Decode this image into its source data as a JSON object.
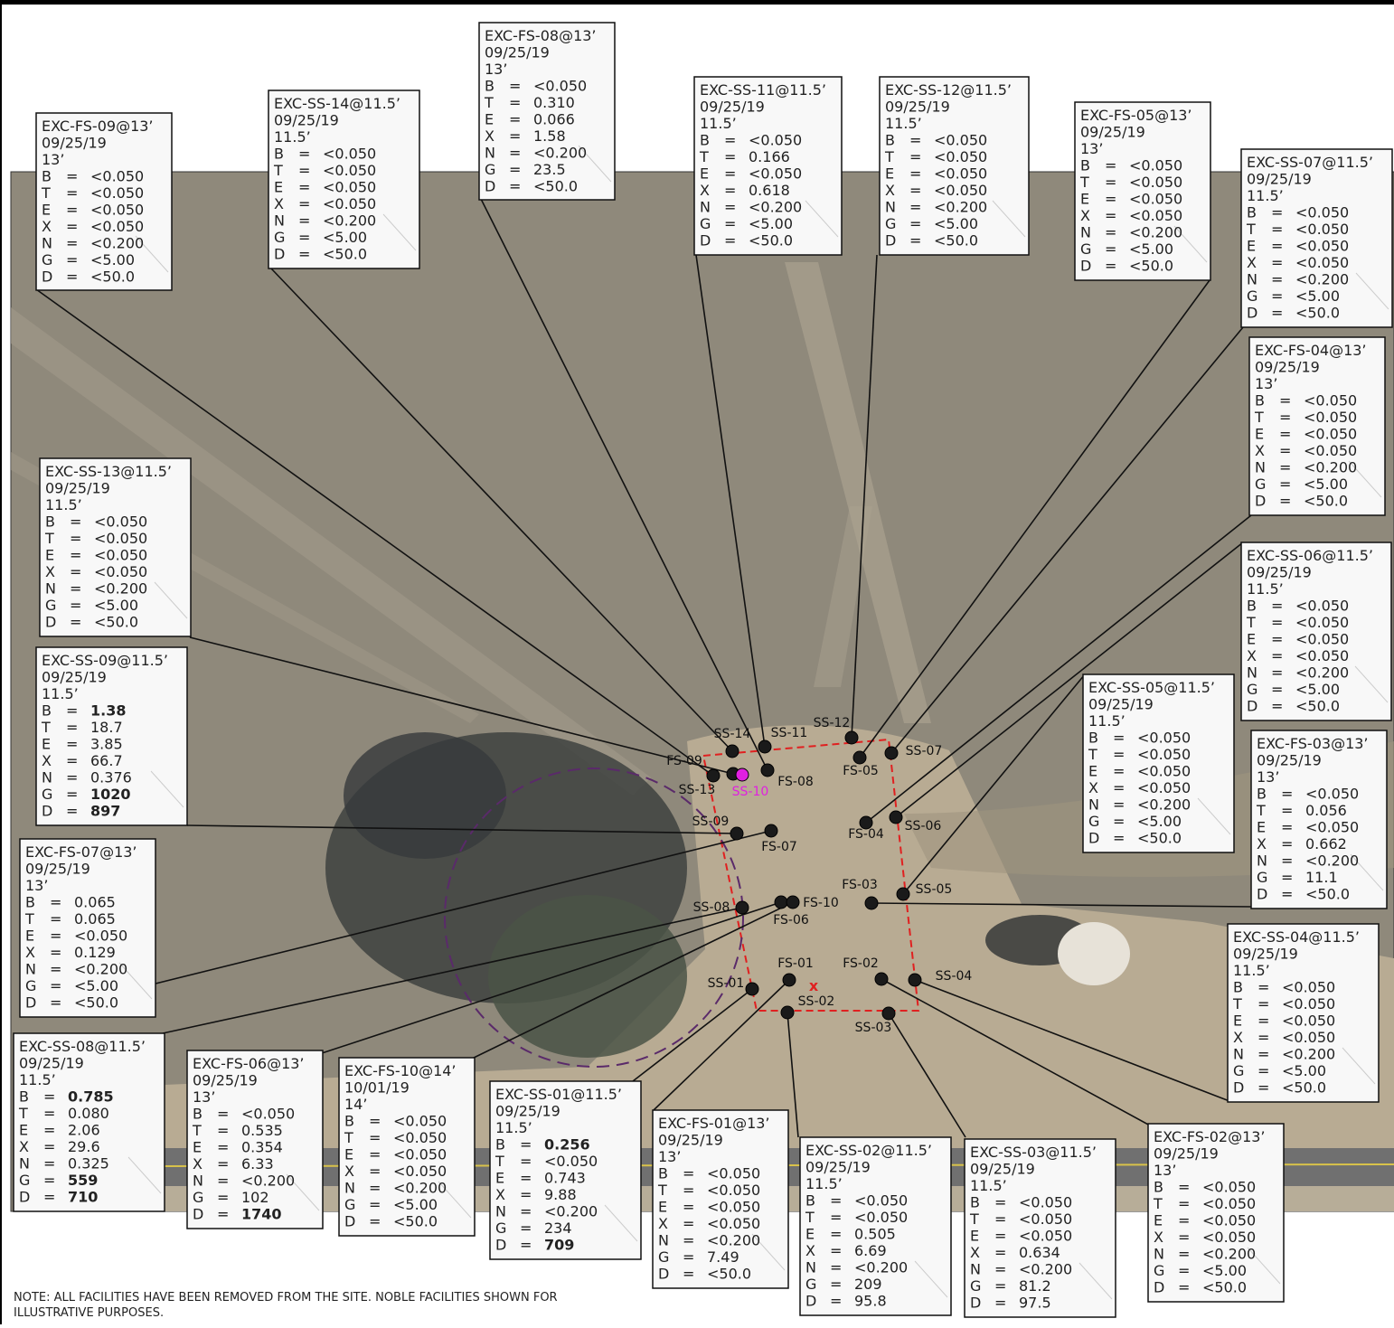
{
  "params": [
    "B",
    "T",
    "E",
    "X",
    "N",
    "G",
    "D"
  ],
  "separator": "=",
  "samples": [
    {
      "lines": [
        "EXC-FS-09@13’",
        "09/25/19",
        "13’"
      ],
      "values": [
        "<0.050",
        "<0.050",
        "<0.050",
        "<0.050",
        "<0.200",
        "<5.00",
        "<50.0"
      ],
      "bold_rows": []
    },
    {
      "lines": [
        "EXC-SS-14@11.5’",
        "09/25/19",
        "11.5’"
      ],
      "values": [
        "<0.050",
        "<0.050",
        "<0.050",
        "<0.050",
        "<0.200",
        "<5.00",
        "<50.0"
      ],
      "bold_rows": []
    },
    {
      "lines": [
        "EXC-FS-08@13’",
        "09/25/19",
        "13’"
      ],
      "values": [
        "<0.050",
        "0.310",
        "0.066",
        "1.58",
        "<0.200",
        "23.5",
        "<50.0"
      ],
      "bold_rows": []
    },
    {
      "lines": [
        "EXC-SS-11@11.5’",
        "09/25/19",
        "11.5’"
      ],
      "values": [
        "<0.050",
        "0.166",
        "<0.050",
        "0.618",
        "<0.200",
        "<5.00",
        "<50.0"
      ],
      "bold_rows": []
    },
    {
      "lines": [
        "EXC-SS-12@11.5’",
        "09/25/19",
        "11.5’"
      ],
      "values": [
        "<0.050",
        "<0.050",
        "<0.050",
        "<0.050",
        "<0.200",
        "<5.00",
        "<50.0"
      ],
      "bold_rows": []
    },
    {
      "lines": [
        "EXC-FS-05@13’",
        "09/25/19",
        "13’"
      ],
      "values": [
        "<0.050",
        "<0.050",
        "<0.050",
        "<0.050",
        "<0.200",
        "<5.00",
        "<50.0"
      ],
      "bold_rows": []
    },
    {
      "lines": [
        "EXC-SS-07@11.5’",
        "09/25/19",
        "11.5’"
      ],
      "values": [
        "<0.050",
        "<0.050",
        "<0.050",
        "<0.050",
        "<0.200",
        "<5.00",
        "<50.0"
      ],
      "bold_rows": []
    },
    {
      "lines": [
        "EXC-FS-04@13’",
        "09/25/19",
        "13’"
      ],
      "values": [
        "<0.050",
        "<0.050",
        "<0.050",
        "<0.050",
        "<0.200",
        "<5.00",
        "<50.0"
      ],
      "bold_rows": []
    },
    {
      "lines": [
        "EXC-SS-06@11.5’",
        "09/25/19",
        "11.5’"
      ],
      "values": [
        "<0.050",
        "<0.050",
        "<0.050",
        "<0.050",
        "<0.200",
        "<5.00",
        "<50.0"
      ],
      "bold_rows": []
    },
    {
      "lines": [
        "EXC-SS-05@11.5’",
        "09/25/19",
        "11.5’"
      ],
      "values": [
        "<0.050",
        "<0.050",
        "<0.050",
        "<0.050",
        "<0.200",
        "<5.00",
        "<50.0"
      ],
      "bold_rows": []
    },
    {
      "lines": [
        "EXC-FS-03@13’",
        "09/25/19",
        "13’"
      ],
      "values": [
        "<0.050",
        "0.056",
        "<0.050",
        "0.662",
        "<0.200",
        "11.1",
        "<50.0"
      ],
      "bold_rows": []
    },
    {
      "lines": [
        "EXC-SS-04@11.5’",
        "09/25/19",
        "11.5’"
      ],
      "values": [
        "<0.050",
        "<0.050",
        "<0.050",
        "<0.050",
        "<0.200",
        "<5.00",
        "<50.0"
      ],
      "bold_rows": []
    },
    {
      "lines": [
        "EXC-FS-02@13’",
        "09/25/19",
        "13’"
      ],
      "values": [
        "<0.050",
        "<0.050",
        "<0.050",
        "<0.050",
        "<0.200",
        "<5.00",
        "<50.0"
      ],
      "bold_rows": []
    },
    {
      "lines": [
        "EXC-SS-03@11.5’",
        "09/25/19",
        "11.5’"
      ],
      "values": [
        "<0.050",
        "<0.050",
        "<0.050",
        "0.634",
        "<0.200",
        "81.2",
        "97.5"
      ],
      "bold_rows": []
    },
    {
      "lines": [
        "EXC-SS-02@11.5’",
        "09/25/19",
        "11.5’"
      ],
      "values": [
        "<0.050",
        "<0.050",
        "0.505",
        "6.69",
        "<0.200",
        "209",
        "95.8"
      ],
      "bold_rows": []
    },
    {
      "lines": [
        "EXC-FS-01@13’",
        "09/25/19",
        "13’"
      ],
      "values": [
        "<0.050",
        "<0.050",
        "<0.050",
        "<0.050",
        "<0.200",
        "7.49",
        "<50.0"
      ],
      "bold_rows": []
    },
    {
      "lines": [
        "EXC-SS-01@11.5’",
        "09/25/19",
        "11.5’"
      ],
      "values": [
        "0.256",
        "<0.050",
        "0.743",
        "9.88",
        "<0.200",
        "234",
        "709"
      ],
      "bold_rows": [
        "B",
        "D"
      ]
    },
    {
      "lines": [
        "EXC-FS-10@14’",
        "10/01/19",
        "14’"
      ],
      "values": [
        "<0.050",
        "<0.050",
        "<0.050",
        "<0.050",
        "<0.200",
        "<5.00",
        "<50.0"
      ],
      "bold_rows": []
    },
    {
      "lines": [
        "EXC-FS-06@13’",
        "09/25/19",
        "13’"
      ],
      "values": [
        "<0.050",
        "0.535",
        "0.354",
        "6.33",
        "<0.200",
        "102",
        "1740"
      ],
      "bold_rows": [
        "D"
      ]
    },
    {
      "lines": [
        "EXC-SS-08@11.5’",
        "09/25/19",
        "11.5’"
      ],
      "values": [
        "0.785",
        "0.080",
        "2.06",
        "29.6",
        "0.325",
        "559",
        "710"
      ],
      "bold_rows": [
        "B",
        "G",
        "D"
      ]
    },
    {
      "lines": [
        "EXC-FS-07@13’",
        "09/25/19",
        "13’"
      ],
      "values": [
        "0.065",
        "0.065",
        "<0.050",
        "0.129",
        "<0.200",
        "<5.00",
        "<50.0"
      ],
      "bold_rows": []
    },
    {
      "lines": [
        "EXC-SS-09@11.5’",
        "09/25/19",
        "11.5’"
      ],
      "values": [
        "1.38",
        "18.7",
        "3.85",
        "66.7",
        "0.376",
        "1020",
        "897"
      ],
      "bold_rows": [
        "B",
        "G",
        "D"
      ]
    },
    {
      "lines": [
        "EXC-SS-13@11.5’",
        "09/25/19",
        "11.5’"
      ],
      "values": [
        "<0.050",
        "<0.050",
        "<0.050",
        "<0.050",
        "<0.200",
        "<5.00",
        "<50.0"
      ],
      "bold_rows": []
    }
  ],
  "points": [
    {
      "label": "SS-14",
      "color": "#1a1a1a"
    },
    {
      "label": "SS-11",
      "color": "#1a1a1a"
    },
    {
      "label": "SS-12",
      "color": "#1a1a1a"
    },
    {
      "label": "SS-07",
      "color": "#1a1a1a"
    },
    {
      "label": "FS-05",
      "color": "#1a1a1a"
    },
    {
      "label": "FS-09",
      "color": "#1a1a1a"
    },
    {
      "label": "SS-13",
      "color": "#1a1a1a"
    },
    {
      "label": "FS-08",
      "color": "#1a1a1a"
    },
    {
      "label": "SS-10",
      "color": "#e020e0"
    },
    {
      "label": "SS-09",
      "color": "#1a1a1a"
    },
    {
      "label": "FS-07",
      "color": "#1a1a1a"
    },
    {
      "label": "FS-04",
      "color": "#1a1a1a"
    },
    {
      "label": "SS-06",
      "color": "#1a1a1a"
    },
    {
      "label": "FS-03",
      "color": "#1a1a1a"
    },
    {
      "label": "SS-05",
      "color": "#1a1a1a"
    },
    {
      "label": "SS-08",
      "color": "#1a1a1a"
    },
    {
      "label": "FS-06",
      "color": "#1a1a1a"
    },
    {
      "label": "FS-10",
      "color": "#1a1a1a"
    },
    {
      "label": "FS-01",
      "color": "#1a1a1a"
    },
    {
      "label": "FS-02",
      "color": "#1a1a1a"
    },
    {
      "label": "SS-04",
      "color": "#1a1a1a"
    },
    {
      "label": "SS-01",
      "color": "#1a1a1a"
    },
    {
      "label": "SS-02",
      "color": "#1a1a1a"
    },
    {
      "label": "SS-03",
      "color": "#1a1a1a"
    }
  ],
  "note": [
    "NOTE: ALL FACILITIES HAVE BEEN REMOVED FROM THE SITE. NOBLE FACILITIES SHOWN FOR",
    "ILLUSTRATIVE PURPOSES."
  ]
}
